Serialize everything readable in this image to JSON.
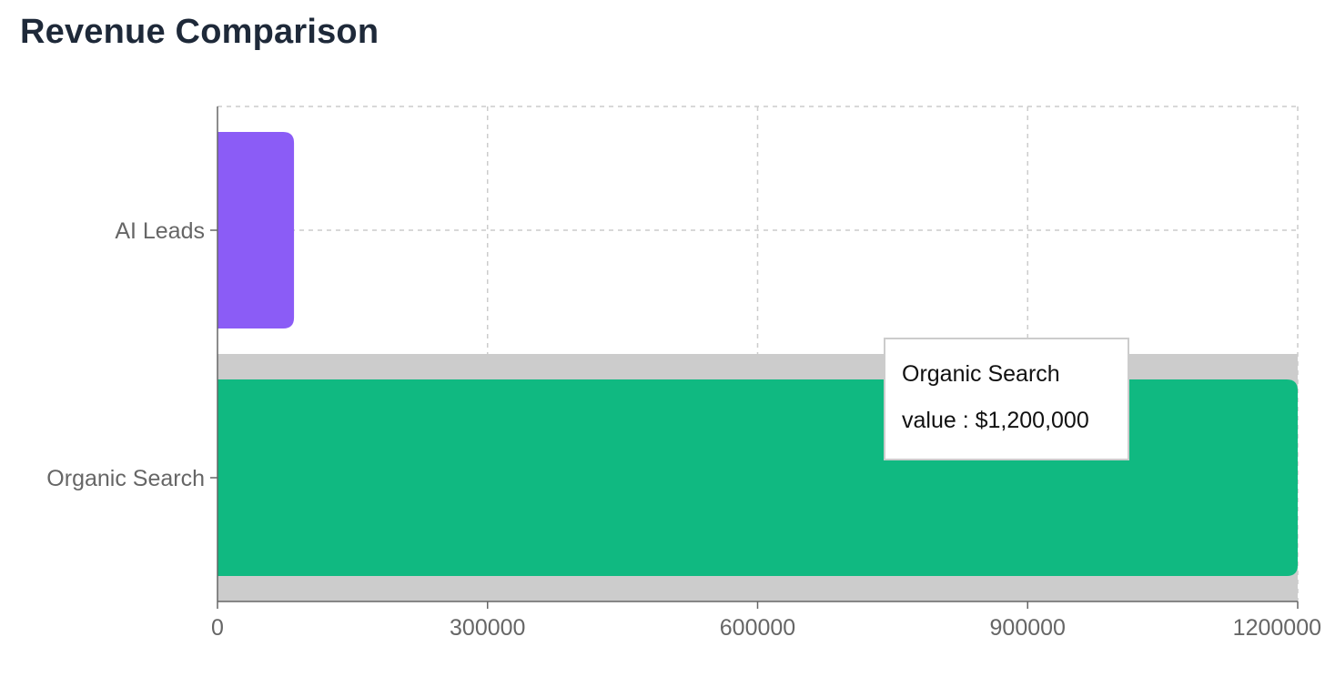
{
  "chart_data": {
    "type": "bar",
    "orientation": "horizontal",
    "title": "Revenue Comparison",
    "categories": [
      "AI Leads",
      "Organic Search"
    ],
    "values": [
      85000,
      1200000
    ],
    "colors": [
      "#8b5cf6",
      "#10b981"
    ],
    "xlim": [
      0,
      1200000
    ],
    "xticks": [
      0,
      300000,
      600000,
      900000,
      1200000
    ],
    "xtick_labels": [
      "0",
      "300000",
      "600000",
      "900000",
      "1200000"
    ],
    "grid": true,
    "grid_style": "dashed",
    "highlight_color": "#cccccc",
    "active_category": "Organic Search"
  },
  "tooltip": {
    "label": "Organic Search",
    "name": "value",
    "separator": " : ",
    "value": "$1,200,000"
  }
}
